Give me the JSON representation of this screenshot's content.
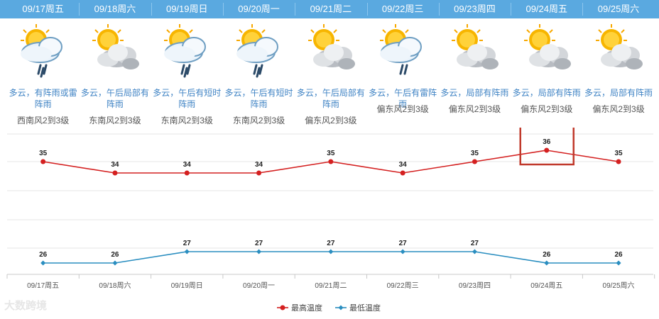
{
  "days": [
    {
      "date": "09/17周五",
      "desc": "多云，有阵雨或雷阵雨",
      "wind": "西南风2到3级",
      "icon": "rain-heavy",
      "tick": "09/17周五"
    },
    {
      "date": "09/18周六",
      "desc": "多云，午后局部有阵雨",
      "wind": "东南风2到3级",
      "icon": "sun-cloud",
      "tick": "09/18周六"
    },
    {
      "date": "09/19周日",
      "desc": "多云，午后有短时阵雨",
      "wind": "东南风2到3级",
      "icon": "rain-heavy",
      "tick": "09/19周日"
    },
    {
      "date": "09/20周一",
      "desc": "多云，午后有短时阵雨",
      "wind": "东南风2到3级",
      "icon": "rain-heavy",
      "tick": "09/20周一"
    },
    {
      "date": "09/21周二",
      "desc": "多云，午后局部有阵雨",
      "wind": "偏东风2到3级",
      "icon": "sun-cloud",
      "tick": "09/21周二"
    },
    {
      "date": "09/22周三",
      "desc": "多云，午后有雷阵雨",
      "wind": "偏东风2到3级",
      "icon": "rain-light",
      "tick": "09/22周三"
    },
    {
      "date": "09/23周四",
      "desc": "多云，局部有阵雨",
      "wind": "偏东风2到3级",
      "icon": "sun-cloud",
      "tick": "09/23周四"
    },
    {
      "date": "09/24周五",
      "desc": "多云，局部有阵雨",
      "wind": "偏东风2到3级",
      "icon": "sun-cloud",
      "tick": "09/24周五"
    },
    {
      "date": "09/25周六",
      "desc": "多云，局部有阵雨",
      "wind": "偏东风2到3级",
      "icon": "sun-cloud",
      "tick": "09/25周六"
    }
  ],
  "chart_data": {
    "type": "line",
    "categories": [
      "09/17周五",
      "09/18周六",
      "09/19周日",
      "09/20周一",
      "09/21周二",
      "09/22周三",
      "09/23周四",
      "09/24周五",
      "09/25周六"
    ],
    "series": [
      {
        "name": "最高温度",
        "values": [
          35,
          34,
          34,
          34,
          35,
          34,
          35,
          36,
          35
        ],
        "color": "#d42020"
      },
      {
        "name": "最低温度",
        "values": [
          26,
          26,
          27,
          27,
          27,
          27,
          27,
          26,
          26
        ],
        "color": "#2a8ec0"
      }
    ],
    "highlight_index": 7,
    "highlight_color": "#c0392b",
    "legend_position": "bottom-center",
    "grid": true
  },
  "watermark": "大数跨境",
  "colors": {
    "header": "#5aa9e0",
    "desc": "#3f83c4"
  }
}
